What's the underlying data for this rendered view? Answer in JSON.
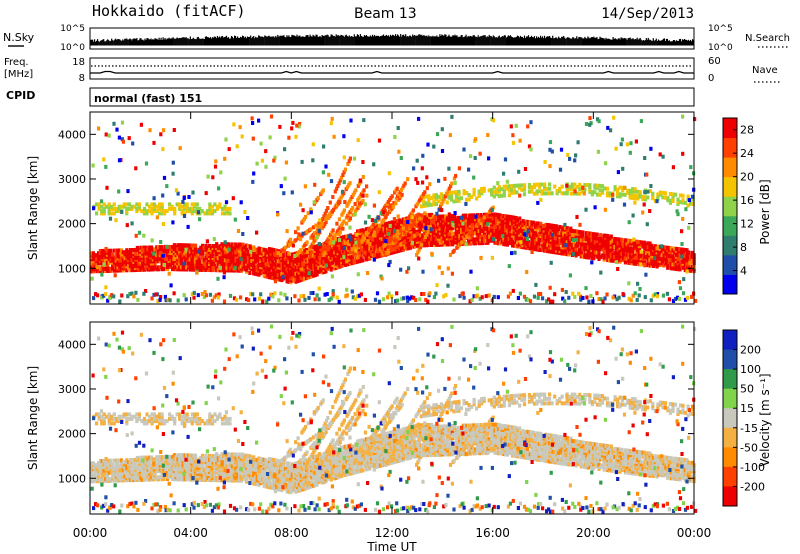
{
  "header": {
    "station": "Hokkaido (fitACF)",
    "beam": "Beam 13",
    "date": "14/Sep/2013"
  },
  "strips": {
    "nsky": {
      "label": "N.Sky",
      "ticks": [
        "10^5",
        "10^0"
      ],
      "right_ticks": [
        "10^5",
        "10^0"
      ],
      "right_label": "N.Search"
    },
    "freq": {
      "label": "Freq.",
      "unit": "[MHz]",
      "ticks": [
        "18",
        "8"
      ],
      "right_ticks": [
        "60",
        "0"
      ],
      "right_label": "Nave"
    },
    "cpid": {
      "label": "CPID",
      "value": "normal (fast) 151"
    }
  },
  "colors": {
    "power": [
      "#0000ee",
      "#1f4fa8",
      "#2e7d6e",
      "#3aa857",
      "#8fd34a",
      "#f5c400",
      "#ff8c00",
      "#ff4000",
      "#ee0000"
    ],
    "velocity": [
      "#ee0000",
      "#ff4000",
      "#ff8c00",
      "#f5b042",
      "#c8c8bc",
      "#7fd44a",
      "#2f9a4a",
      "#1f4fa8",
      "#1020c0"
    ]
  },
  "chart_data": [
    {
      "type": "heatmap",
      "quantity": "Power",
      "ylabel": "Slant Range [km]",
      "xlabel": "Time UT",
      "x_ticks": [
        "00:00",
        "04:00",
        "08:00",
        "12:00",
        "16:00",
        "20:00",
        "00:00"
      ],
      "xlim_hours": [
        0,
        24
      ],
      "ylim": [
        200,
        4500
      ],
      "y_ticks": [
        1000,
        2000,
        3000,
        4000
      ],
      "colorbar": {
        "label": "Power [dB]",
        "ticks": [
          4,
          8,
          12,
          16,
          20,
          24,
          28
        ],
        "range": [
          0,
          30
        ]
      },
      "main_band_center_km": [
        {
          "hour": 0,
          "km": 1150
        },
        {
          "hour": 3,
          "km": 1250
        },
        {
          "hour": 6,
          "km": 1250
        },
        {
          "hour": 8,
          "km": 1000
        },
        {
          "hour": 10,
          "km": 1400
        },
        {
          "hour": 13,
          "km": 1850
        },
        {
          "hour": 16,
          "km": 1900
        },
        {
          "hour": 20,
          "km": 1500
        },
        {
          "hour": 24,
          "km": 1150
        }
      ]
    },
    {
      "type": "heatmap",
      "quantity": "Velocity",
      "ylabel": "Slant Range [km]",
      "xlabel": "Time UT",
      "x_ticks": [
        "00:00",
        "04:00",
        "08:00",
        "12:00",
        "16:00",
        "20:00",
        "00:00"
      ],
      "xlim_hours": [
        0,
        24
      ],
      "ylim": [
        200,
        4500
      ],
      "y_ticks": [
        1000,
        2000,
        3000,
        4000
      ],
      "colorbar": {
        "label": "Velocity [m s⁻¹]",
        "ticks": [
          200,
          100,
          50,
          15,
          -15,
          -50,
          -100,
          -200
        ],
        "range": [
          -250,
          250
        ]
      }
    }
  ]
}
